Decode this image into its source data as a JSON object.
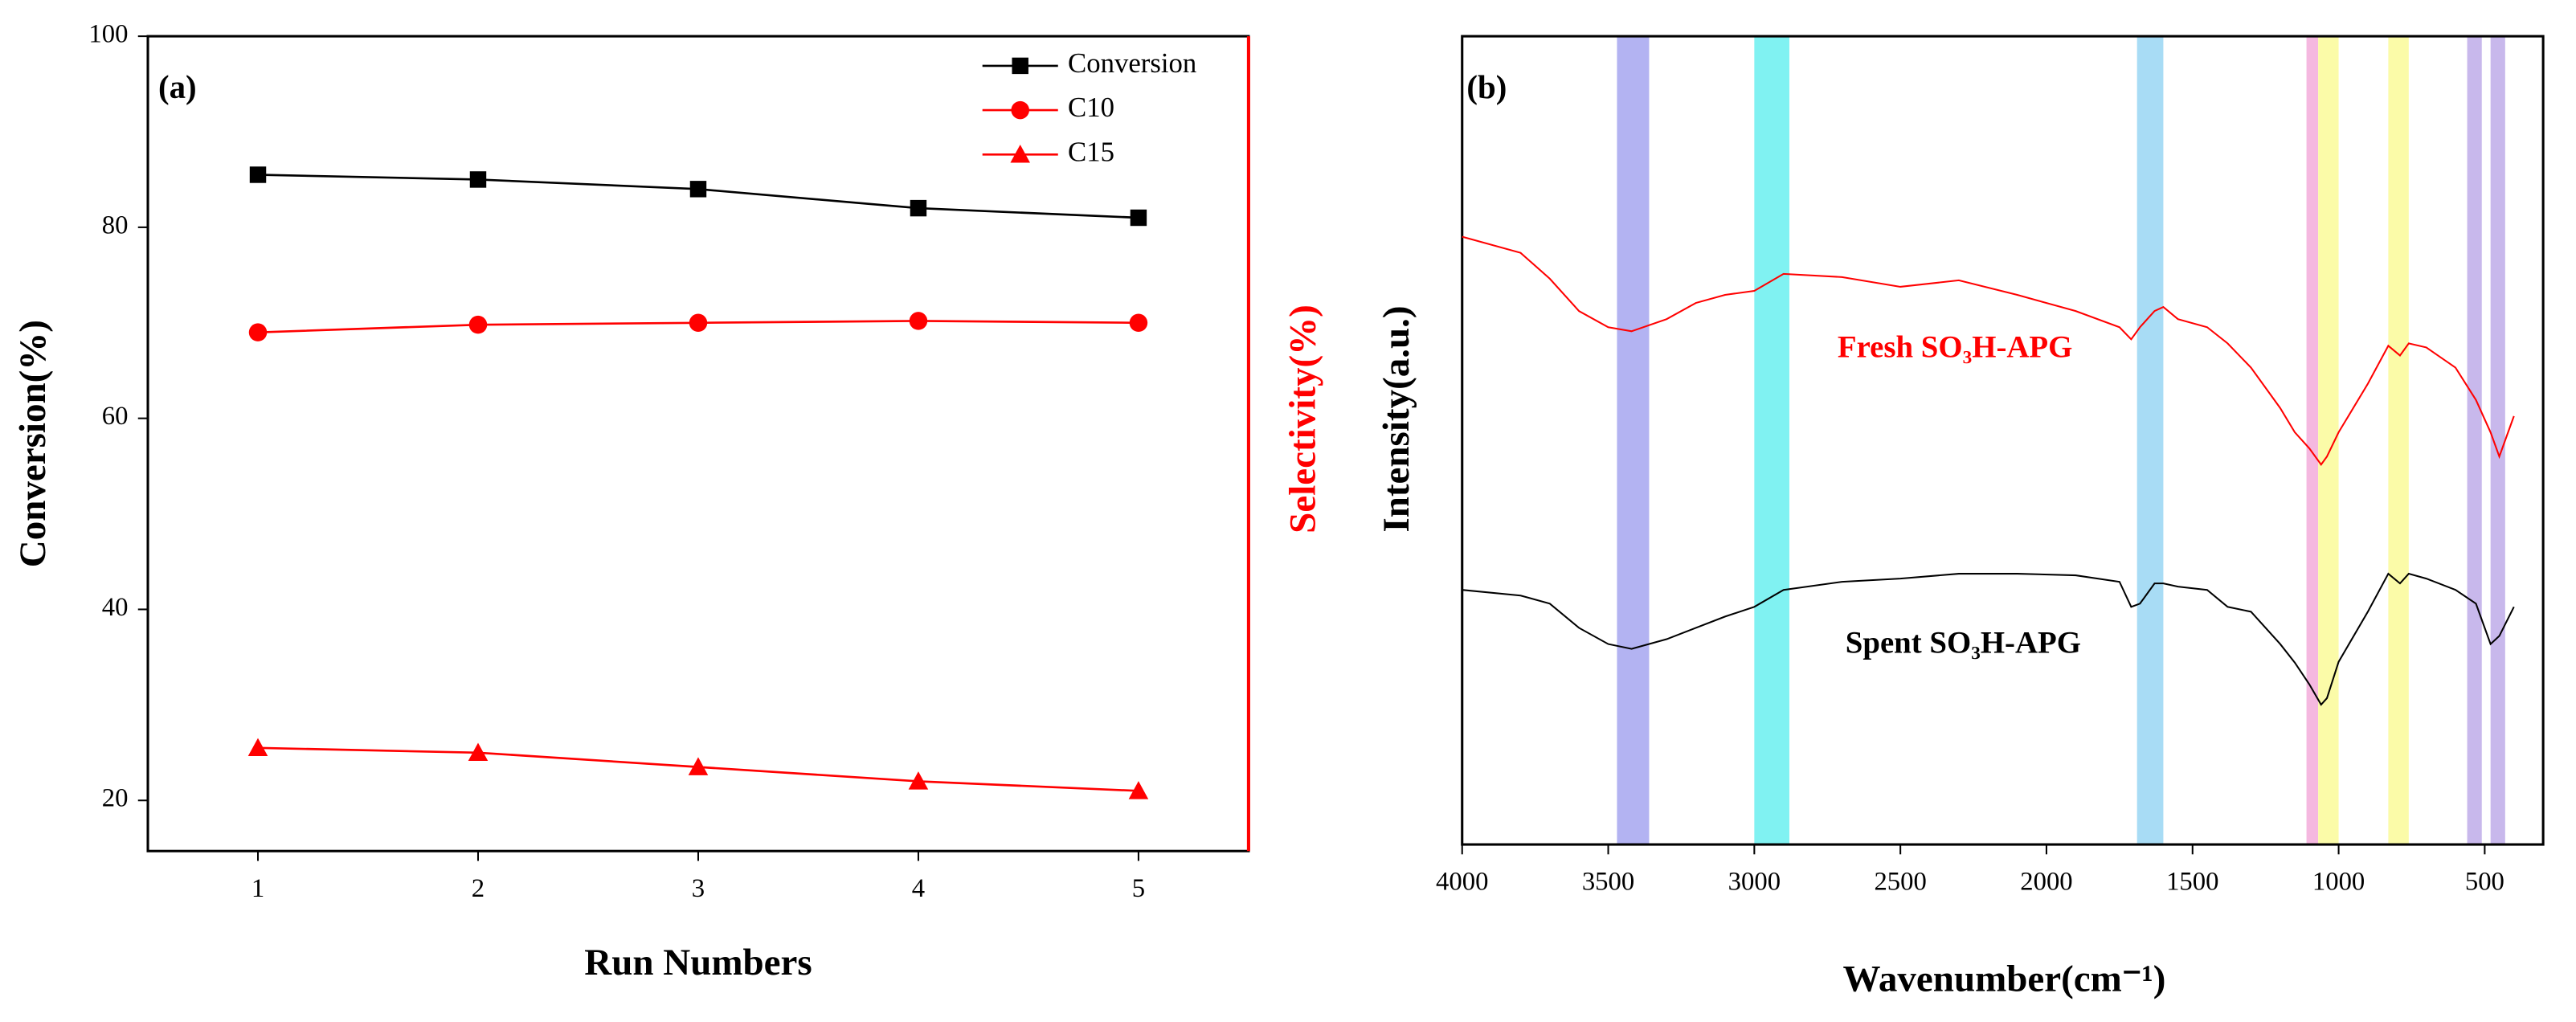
{
  "chart_data": [
    {
      "type": "line",
      "panel_label": "(a)",
      "x_label": "Run Numbers",
      "y_label": "Conversion(%)",
      "y2_label": "Selectivity(%)",
      "y2_color": "#ff0000",
      "x": [
        1,
        2,
        3,
        4,
        5
      ],
      "xlim": [
        0.5,
        5.5
      ],
      "xticks": [
        1,
        2,
        3,
        4,
        5
      ],
      "ylim": [
        14.7,
        100
      ],
      "yticks": [
        20,
        40,
        60,
        80,
        100
      ],
      "legend": "top-right",
      "series": [
        {
          "name": "Conversion",
          "color": "#000000",
          "marker": "square",
          "values": [
            85.5,
            85,
            84,
            82,
            81
          ]
        },
        {
          "name": "C10",
          "color": "#ff0000",
          "marker": "circle",
          "values": [
            69,
            69.8,
            70,
            70.2,
            70
          ]
        },
        {
          "name": "C15",
          "color": "#ff0000",
          "marker": "triangle",
          "values": [
            25.5,
            25,
            23.5,
            22,
            21
          ]
        }
      ]
    },
    {
      "type": "line",
      "panel_label": "(b)",
      "x_label": "Wavenumber(cm⁻¹)",
      "y_label": "Intensity(a.u.)",
      "xlim": [
        4000,
        300
      ],
      "xticks": [
        4000,
        3500,
        3000,
        2500,
        2000,
        1500,
        1000,
        500
      ],
      "ylim": [
        0,
        100
      ],
      "bands": [
        {
          "range": [
            3470,
            3360
          ],
          "color": "#b3b3f2"
        },
        {
          "range": [
            3000,
            2880
          ],
          "color": "#80f2f2"
        },
        {
          "range": [
            1690,
            1600
          ],
          "color": "#a8dcf5"
        },
        {
          "range": [
            1110,
            1070
          ],
          "color": "#f5b8e0"
        },
        {
          "range": [
            1070,
            1000
          ],
          "color": "#fbfba8"
        },
        {
          "range": [
            830,
            760
          ],
          "color": "#fbfba8"
        },
        {
          "range": [
            560,
            510
          ],
          "color": "#c8b8ec"
        },
        {
          "range": [
            480,
            430
          ],
          "color": "#c8b8ec"
        }
      ],
      "x": [
        4000,
        3800,
        3700,
        3600,
        3500,
        3420,
        3300,
        3200,
        3100,
        3000,
        2900,
        2700,
        2500,
        2300,
        2100,
        1900,
        1750,
        1710,
        1680,
        1630,
        1600,
        1550,
        1450,
        1380,
        1300,
        1200,
        1150,
        1100,
        1060,
        1040,
        1000,
        900,
        830,
        790,
        760,
        700,
        600,
        530,
        480,
        450,
        400
      ],
      "series": [
        {
          "name": "Fresh SO₃H-APG",
          "color": "#ff0000",
          "values": [
            75.2,
            73.2,
            70,
            66,
            64,
            63.5,
            65,
            67,
            68,
            68.5,
            70.6,
            70.2,
            69,
            69.8,
            68,
            66,
            64,
            62.5,
            64,
            66,
            66.5,
            65,
            64,
            62,
            59,
            54,
            51,
            49,
            47,
            48,
            51,
            57,
            61.7,
            60.5,
            62,
            61.5,
            59,
            55,
            51,
            48,
            53
          ]
        },
        {
          "name": "Spent SO₃H-APG",
          "color": "#000000",
          "values": [
            31.5,
            30.8,
            29.8,
            26.8,
            24.8,
            24.2,
            25.4,
            26.8,
            28.2,
            29.4,
            31.5,
            32.5,
            32.9,
            33.5,
            33.5,
            33.3,
            32.5,
            29.4,
            29.8,
            32.3,
            32.3,
            31.9,
            31.5,
            29.4,
            28.8,
            24.8,
            22.5,
            19.8,
            17.3,
            18.1,
            22.6,
            28.8,
            33.5,
            32.3,
            33.5,
            32.9,
            31.5,
            29.8,
            24.8,
            25.8,
            29.4
          ]
        }
      ]
    }
  ]
}
